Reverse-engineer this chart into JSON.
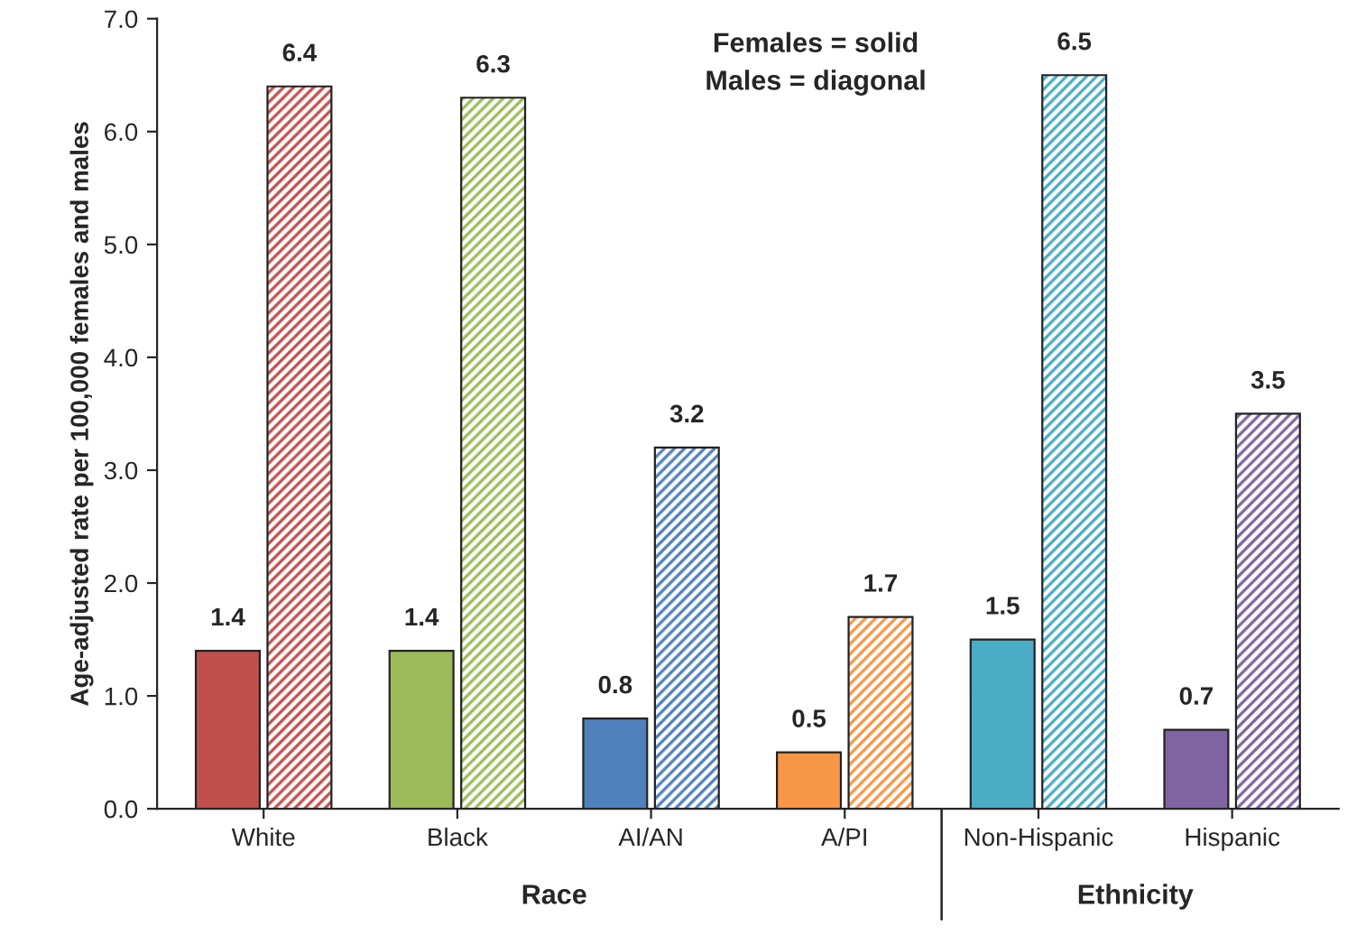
{
  "chart_data": {
    "type": "bar",
    "ylabel": "Age-adjusted rate per 100,000 females and males",
    "categories": [
      "White",
      "Black",
      "AI/AN",
      "A/PI",
      "Non-Hispanic",
      "Hispanic"
    ],
    "series": [
      {
        "colors": [
          "#c0504d",
          "#9bbb59",
          "#4f81bd",
          "#f79646",
          "#4bacc6",
          "#8064a2"
        ],
        "values": [
          1.4,
          1.4,
          0.8,
          0.5,
          1.5,
          0.7
        ]
      },
      {
        "colors": [
          "#c0504d",
          "#9bbb59",
          "#4f81bd",
          "#f79646",
          "#4bacc6",
          "#8064a2"
        ],
        "values": [
          6.4,
          6.3,
          3.2,
          1.7,
          6.5,
          3.5
        ]
      }
    ],
    "ylim": [
      0,
      7
    ],
    "yticks": [
      {
        "value": 0,
        "label": "0.0"
      },
      {
        "value": 1,
        "label": "1.0"
      },
      {
        "value": 2,
        "label": "2.0"
      },
      {
        "value": 3,
        "label": "3.0"
      },
      {
        "value": 4,
        "label": "4.0"
      },
      {
        "value": 5,
        "label": "5.0"
      },
      {
        "value": 6,
        "label": "6.0"
      },
      {
        "value": 7,
        "label": "7.0"
      }
    ],
    "data_labels": true,
    "grid": false,
    "legend": false,
    "annotations": [
      "Females = solid\nMales = diagonal",
      "Race",
      "Ethnicity"
    ]
  }
}
